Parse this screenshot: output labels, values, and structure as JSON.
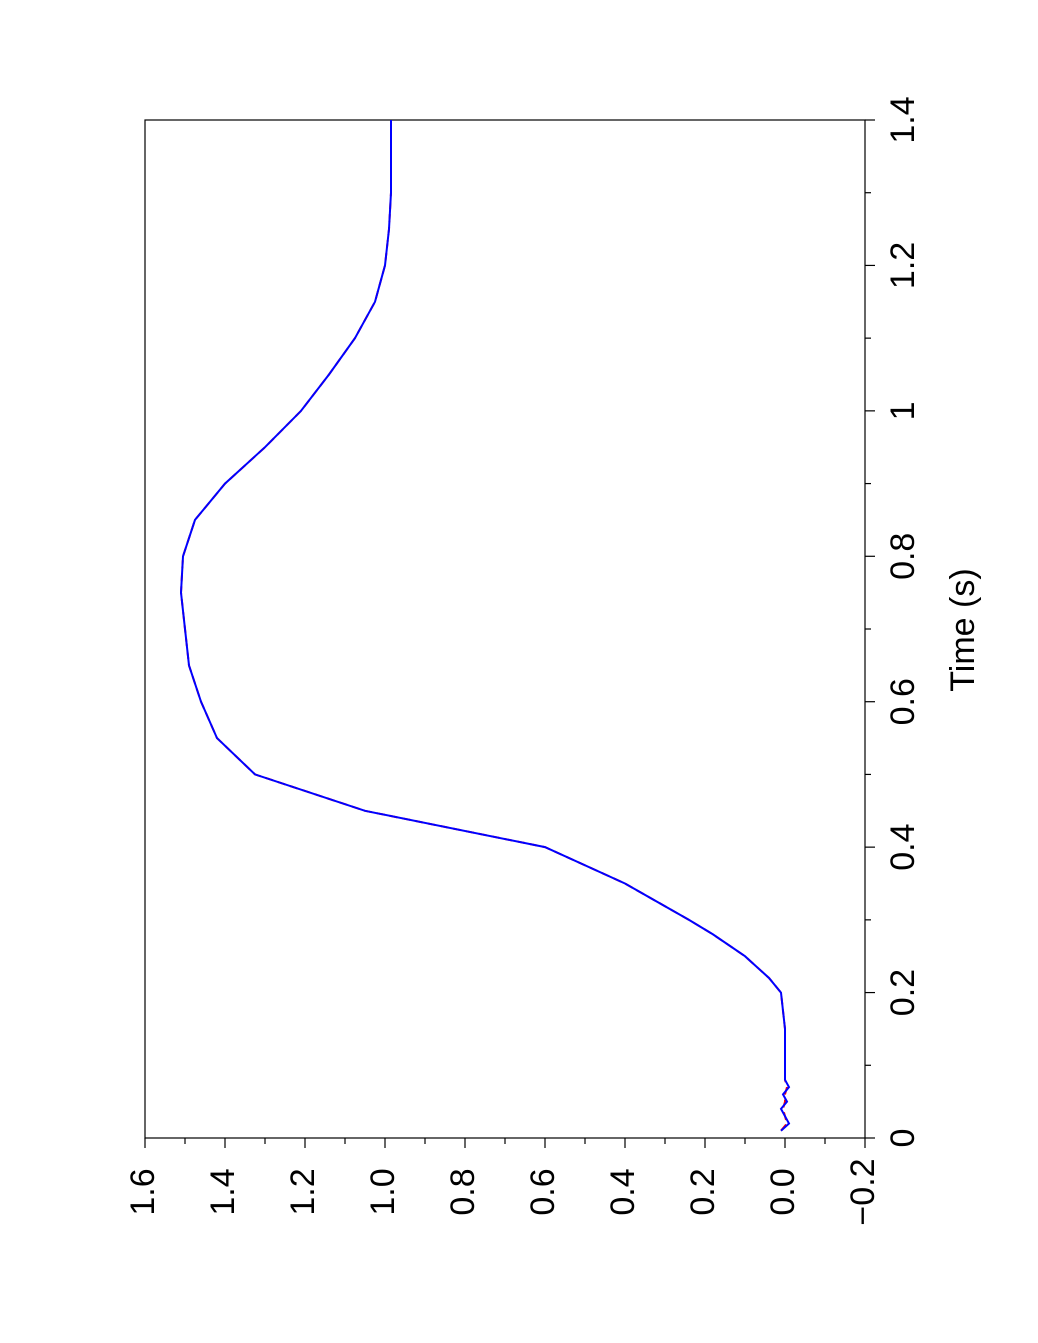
{
  "chart_data": {
    "type": "line",
    "xlabel": "Time (s)",
    "xlim": [
      0,
      1.4
    ],
    "xticks": [
      0,
      0.2,
      0.4,
      0.6,
      0.8,
      1,
      1.2,
      1.4
    ],
    "xminorticks": [
      0.1,
      0.3,
      0.5,
      0.7,
      0.9,
      1.1,
      1.3
    ],
    "ylim": [
      -0.2,
      1.6
    ],
    "yticks": [
      {
        "value": -0.2,
        "label": "−0.2"
      },
      {
        "value": 0,
        "label": "0.0"
      },
      0.2,
      0.4,
      0.6,
      0.8,
      {
        "value": 1,
        "label": "1.0"
      },
      1.2,
      1.4,
      1.6
    ],
    "yminorticks": [
      -0.1,
      0.1,
      0.3,
      0.5,
      0.7,
      0.9,
      1.1,
      1.3,
      1.5
    ],
    "x": [
      0.01,
      0.02,
      0.03,
      0.04,
      0.05,
      0.06,
      0.07,
      0.08,
      0.1,
      0.15,
      0.2,
      0.22,
      0.25,
      0.28,
      0.3,
      0.35,
      0.4,
      0.45,
      0.5,
      0.55,
      0.6,
      0.65,
      0.7,
      0.75,
      0.8,
      0.85,
      0.9,
      0.95,
      1.0,
      1.05,
      1.1,
      1.15,
      1.2,
      1.25,
      1.3,
      1.4
    ],
    "series": [
      {
        "color": "#ff0000",
        "dash": true,
        "values": [
          0.01,
          -0.005,
          0.0,
          0.005,
          0.0,
          0.0,
          -0.005,
          0.0,
          0.0,
          0.0,
          0.01,
          0.04,
          0.1,
          0.18,
          0.24,
          0.4,
          0.6,
          1.05,
          1.325,
          1.42,
          1.46,
          1.49,
          1.5,
          1.51,
          1.505,
          1.475,
          1.4,
          1.3,
          1.21,
          1.14,
          1.075,
          1.025,
          1.0,
          0.99,
          0.985,
          0.985
        ]
      },
      {
        "color": "#0000ff",
        "dash": false,
        "values": [
          0.01,
          -0.01,
          0.0,
          0.01,
          -0.005,
          0.005,
          -0.01,
          0.0,
          0.0,
          0.0,
          0.01,
          0.04,
          0.1,
          0.18,
          0.24,
          0.4,
          0.6,
          1.05,
          1.325,
          1.42,
          1.46,
          1.49,
          1.5,
          1.51,
          1.505,
          1.475,
          1.4,
          1.3,
          1.21,
          1.14,
          1.075,
          1.025,
          1.0,
          0.99,
          0.985,
          0.985
        ]
      }
    ]
  }
}
